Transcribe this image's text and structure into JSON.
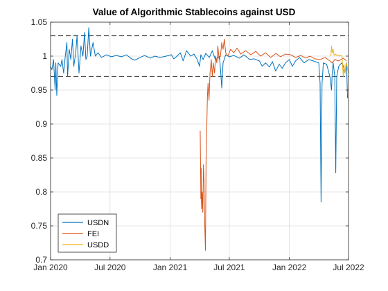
{
  "chart_data": {
    "type": "line",
    "title": "Value of Algorithmic Stablecoins against USD",
    "xlabel": "",
    "ylabel": "",
    "x_ticks": [
      "Jan 2020",
      "Jul 2020",
      "Jan 2021",
      "Jul 2021",
      "Jan 2022",
      "Jul 2022"
    ],
    "y_ticks": [
      "0.7",
      "0.75",
      "0.8",
      "0.85",
      "0.9",
      "0.95",
      "1",
      "1.05"
    ],
    "xlim": [
      "2020-01-01",
      "2022-07-01"
    ],
    "ylim": [
      0.7,
      1.05
    ],
    "grid": true,
    "legend_position": "bottom-left",
    "reference_lines": [
      1.03,
      0.97
    ],
    "series": [
      {
        "name": "USDN",
        "color": "#0072BD",
        "points": [
          [
            "2020-01-01",
            0.985
          ],
          [
            "2020-01-05",
            0.98
          ],
          [
            "2020-01-10",
            0.995
          ],
          [
            "2020-01-15",
            0.95
          ],
          [
            "2020-01-17",
            0.99
          ],
          [
            "2020-01-20",
            0.942
          ],
          [
            "2020-01-24",
            0.99
          ],
          [
            "2020-02-01",
            0.985
          ],
          [
            "2020-02-05",
            0.995
          ],
          [
            "2020-02-10",
            0.975
          ],
          [
            "2020-02-15",
            1.0
          ],
          [
            "2020-02-20",
            1.02
          ],
          [
            "2020-02-22",
            0.97
          ],
          [
            "2020-02-27",
            1.01
          ],
          [
            "2020-03-03",
            0.995
          ],
          [
            "2020-03-08",
            1.025
          ],
          [
            "2020-03-12",
            0.985
          ],
          [
            "2020-03-18",
            1.005
          ],
          [
            "2020-03-22",
            1.03
          ],
          [
            "2020-03-28",
            0.975
          ],
          [
            "2020-04-03",
            1.015
          ],
          [
            "2020-04-09",
            1.0
          ],
          [
            "2020-04-14",
            1.035
          ],
          [
            "2020-04-18",
            0.995
          ],
          [
            "2020-04-22",
            1.0
          ],
          [
            "2020-04-27",
            1.042
          ],
          [
            "2020-05-02",
            1.0
          ],
          [
            "2020-05-10",
            1.02
          ],
          [
            "2020-05-17",
            1.0
          ],
          [
            "2020-05-25",
            1.005
          ],
          [
            "2020-06-05",
            0.998
          ],
          [
            "2020-06-20",
            1.002
          ],
          [
            "2020-07-05",
            0.999
          ],
          [
            "2020-07-20",
            1.001
          ],
          [
            "2020-08-05",
            0.999
          ],
          [
            "2020-08-20",
            1.002
          ],
          [
            "2020-09-05",
            0.996
          ],
          [
            "2020-09-15",
            0.994
          ],
          [
            "2020-10-01",
            0.998
          ],
          [
            "2020-10-15",
            1.001
          ],
          [
            "2020-11-01",
            0.997
          ],
          [
            "2020-11-15",
            1.0
          ],
          [
            "2020-12-01",
            0.998
          ],
          [
            "2020-12-20",
            1.0
          ],
          [
            "2021-01-05",
            1.002
          ],
          [
            "2021-01-12",
            0.996
          ],
          [
            "2021-01-20",
            0.999
          ],
          [
            "2021-02-01",
            1.005
          ],
          [
            "2021-02-10",
            0.993
          ],
          [
            "2021-02-20",
            1.008
          ],
          [
            "2021-03-05",
            1.0
          ],
          [
            "2021-03-15",
            1.003
          ],
          [
            "2021-03-25",
            0.995
          ],
          [
            "2021-04-01",
            0.985
          ],
          [
            "2021-04-05",
            1.002
          ],
          [
            "2021-04-12",
            0.995
          ],
          [
            "2021-04-20",
            1.004
          ],
          [
            "2021-05-01",
            0.998
          ],
          [
            "2021-05-10",
            1.008
          ],
          [
            "2021-05-20",
            0.994
          ],
          [
            "2021-06-01",
            1.0
          ],
          [
            "2021-06-05",
            0.975
          ],
          [
            "2021-06-08",
            0.953
          ],
          [
            "2021-06-12",
            0.99
          ],
          [
            "2021-06-20",
            1.002
          ],
          [
            "2021-07-01",
            0.999
          ],
          [
            "2021-07-15",
            1.001
          ],
          [
            "2021-08-01",
            0.997
          ],
          [
            "2021-08-15",
            1.002
          ],
          [
            "2021-09-01",
            0.995
          ],
          [
            "2021-09-15",
            0.996
          ],
          [
            "2021-10-01",
            0.993
          ],
          [
            "2021-10-10",
            0.985
          ],
          [
            "2021-10-20",
            0.99
          ],
          [
            "2021-11-01",
            0.984
          ],
          [
            "2021-11-10",
            0.992
          ],
          [
            "2021-11-20",
            0.978
          ],
          [
            "2021-12-01",
            0.988
          ],
          [
            "2021-12-10",
            0.982
          ],
          [
            "2021-12-20",
            0.99
          ],
          [
            "2022-01-01",
            0.995
          ],
          [
            "2022-01-10",
            0.985
          ],
          [
            "2022-01-20",
            0.993
          ],
          [
            "2022-02-01",
            0.998
          ],
          [
            "2022-02-15",
            0.99
          ],
          [
            "2022-03-01",
            0.995
          ],
          [
            "2022-03-15",
            0.993
          ],
          [
            "2022-04-01",
            0.99
          ],
          [
            "2022-04-05",
            0.96
          ],
          [
            "2022-04-08",
            0.785
          ],
          [
            "2022-04-11",
            0.96
          ],
          [
            "2022-04-15",
            0.99
          ],
          [
            "2022-04-25",
            0.988
          ],
          [
            "2022-05-05",
            0.97
          ],
          [
            "2022-05-10",
            0.95
          ],
          [
            "2022-05-12",
            0.975
          ],
          [
            "2022-05-15",
            0.99
          ],
          [
            "2022-05-20",
            0.97
          ],
          [
            "2022-05-23",
            0.828
          ],
          [
            "2022-05-26",
            0.97
          ],
          [
            "2022-06-01",
            0.985
          ],
          [
            "2022-06-10",
            0.99
          ],
          [
            "2022-06-15",
            0.985
          ],
          [
            "2022-06-20",
            0.975
          ],
          [
            "2022-06-25",
            0.99
          ],
          [
            "2022-06-28",
            0.938
          ]
        ]
      },
      {
        "name": "FEI",
        "color": "#D95319",
        "points": [
          [
            "2021-04-03",
            0.89
          ],
          [
            "2021-04-04",
            0.84
          ],
          [
            "2021-04-05",
            0.79
          ],
          [
            "2021-04-06",
            0.835
          ],
          [
            "2021-04-07",
            0.775
          ],
          [
            "2021-04-09",
            0.8
          ],
          [
            "2021-04-11",
            0.77
          ],
          [
            "2021-04-13",
            0.84
          ],
          [
            "2021-04-15",
            0.81
          ],
          [
            "2021-04-17",
            0.75
          ],
          [
            "2021-04-19",
            0.714
          ],
          [
            "2021-04-21",
            0.85
          ],
          [
            "2021-04-23",
            0.89
          ],
          [
            "2021-04-25",
            0.94
          ],
          [
            "2021-04-27",
            0.96
          ],
          [
            "2021-04-30",
            0.935
          ],
          [
            "2021-05-03",
            0.975
          ],
          [
            "2021-05-07",
            0.995
          ],
          [
            "2021-05-10",
            0.97
          ],
          [
            "2021-05-13",
            0.99
          ],
          [
            "2021-05-17",
            0.975
          ],
          [
            "2021-05-20",
            1.0
          ],
          [
            "2021-05-24",
            0.99
          ],
          [
            "2021-05-27",
            1.015
          ],
          [
            "2021-05-31",
            0.995
          ],
          [
            "2021-06-04",
            1.0
          ],
          [
            "2021-06-08",
            1.02
          ],
          [
            "2021-06-12",
            1.01
          ],
          [
            "2021-06-16",
            1.025
          ],
          [
            "2021-06-20",
            1.005
          ],
          [
            "2021-06-27",
            1.0
          ],
          [
            "2021-07-05",
            1.01
          ],
          [
            "2021-07-15",
            1.005
          ],
          [
            "2021-07-25",
            1.012
          ],
          [
            "2021-08-05",
            1.003
          ],
          [
            "2021-08-20",
            1.008
          ],
          [
            "2021-09-05",
            1.002
          ],
          [
            "2021-09-20",
            1.007
          ],
          [
            "2021-10-05",
            1.0
          ],
          [
            "2021-10-20",
            1.005
          ],
          [
            "2021-11-05",
            0.998
          ],
          [
            "2021-11-20",
            1.004
          ],
          [
            "2021-12-05",
            0.999
          ],
          [
            "2021-12-20",
            1.003
          ],
          [
            "2022-01-05",
            1.002
          ],
          [
            "2022-01-20",
            0.998
          ],
          [
            "2022-02-05",
            1.001
          ],
          [
            "2022-02-20",
            0.997
          ],
          [
            "2022-03-05",
            1.0
          ],
          [
            "2022-03-20",
            0.996
          ],
          [
            "2022-04-05",
            0.995
          ],
          [
            "2022-04-20",
            0.998
          ],
          [
            "2022-05-05",
            0.993
          ],
          [
            "2022-05-12",
            0.99
          ],
          [
            "2022-05-20",
            0.995
          ],
          [
            "2022-06-01",
            0.993
          ],
          [
            "2022-06-15",
            0.997
          ],
          [
            "2022-06-25",
            0.993
          ]
        ]
      },
      {
        "name": "USDD",
        "color": "#EDB120",
        "points": [
          [
            "2022-05-08",
            1.0
          ],
          [
            "2022-05-10",
            1.015
          ],
          [
            "2022-05-12",
            1.005
          ],
          [
            "2022-05-15",
            1.01
          ],
          [
            "2022-05-18",
            1.001
          ],
          [
            "2022-05-22",
            1.003
          ],
          [
            "2022-05-26",
            1.001
          ],
          [
            "2022-05-30",
            1.002
          ],
          [
            "2022-06-03",
            1.0
          ],
          [
            "2022-06-07",
            1.001
          ],
          [
            "2022-06-11",
            1.0
          ],
          [
            "2022-06-13",
            0.985
          ],
          [
            "2022-06-15",
            0.97
          ],
          [
            "2022-06-17",
            0.988
          ],
          [
            "2022-06-20",
            0.975
          ],
          [
            "2022-06-24",
            0.99
          ],
          [
            "2022-06-28",
            0.982
          ],
          [
            "2022-06-30",
            0.975
          ]
        ]
      }
    ]
  }
}
